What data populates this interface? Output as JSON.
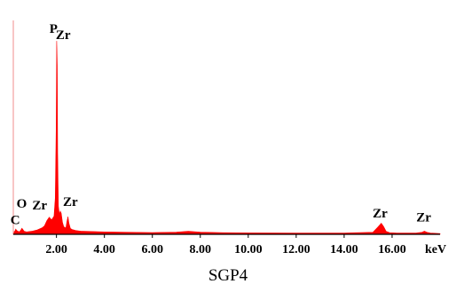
{
  "chart_data": {
    "type": "line",
    "title": "SGP4",
    "xlabel": "keV",
    "ylabel": "",
    "xlim": [
      0.2,
      18.0
    ],
    "ylim": [
      0,
      100
    ],
    "grid": false,
    "legend": "none",
    "color": "#ff0000",
    "xticks": [
      {
        "value": 2.0,
        "label": "2.00"
      },
      {
        "value": 4.0,
        "label": "4.00"
      },
      {
        "value": 6.0,
        "label": "6.00"
      },
      {
        "value": 8.0,
        "label": "8.00"
      },
      {
        "value": 10.0,
        "label": "10.00"
      },
      {
        "value": 12.0,
        "label": "12.00"
      },
      {
        "value": 14.0,
        "label": "14.00"
      },
      {
        "value": 16.0,
        "label": "16.00"
      }
    ],
    "series": [
      {
        "x": [
          0.2,
          0.26,
          0.28,
          0.3,
          0.35,
          0.45,
          0.52,
          0.56,
          0.6,
          0.65,
          0.75,
          1.0,
          1.2,
          1.4,
          1.5,
          1.6,
          1.7,
          1.8,
          1.9,
          1.95,
          1.99,
          2.01,
          2.03,
          2.05,
          2.08,
          2.12,
          2.16,
          2.2,
          2.25,
          2.3,
          2.35,
          2.4,
          2.44,
          2.48,
          2.52,
          2.58,
          2.65,
          2.8,
          3.0,
          4.0,
          6.0,
          7.0,
          7.5,
          8.0,
          9.0,
          10.0,
          12.0,
          14.0,
          15.2,
          15.4,
          15.55,
          15.65,
          15.75,
          15.9,
          16.2,
          17.0,
          17.25,
          17.35,
          17.45,
          17.6,
          18.0
        ],
        "y": [
          1.0,
          1.5,
          2.0,
          2.6,
          1.8,
          1.2,
          2.2,
          3.0,
          2.4,
          1.5,
          1.2,
          1.6,
          2.2,
          3.2,
          4.2,
          6.8,
          8.5,
          7.2,
          9.0,
          18.0,
          55.0,
          96.0,
          84.0,
          40.0,
          14.0,
          10.0,
          11.5,
          10.5,
          6.0,
          4.0,
          3.2,
          3.5,
          6.5,
          8.8,
          5.5,
          3.0,
          2.4,
          1.9,
          1.6,
          1.2,
          0.9,
          1.1,
          1.5,
          1.1,
          0.8,
          0.7,
          0.6,
          0.6,
          1.0,
          3.5,
          5.5,
          3.8,
          1.5,
          0.8,
          0.6,
          0.6,
          1.0,
          1.6,
          1.0,
          0.6,
          0.4
        ]
      }
    ],
    "annotations": [
      {
        "text": "P",
        "x": 1.88,
        "y": 100.0
      },
      {
        "text": "Zr",
        "x": 2.28,
        "y": 97.0
      },
      {
        "text": "C",
        "x": 0.28,
        "y": 5.0
      },
      {
        "text": "O",
        "x": 0.55,
        "y": 13.2
      },
      {
        "text": "Zr",
        "x": 1.3,
        "y": 12.3
      },
      {
        "text": "Zr",
        "x": 2.58,
        "y": 14.2
      },
      {
        "text": "Zr",
        "x": 15.5,
        "y": 8.3
      },
      {
        "text": "Zr",
        "x": 17.32,
        "y": 6.3
      }
    ]
  }
}
